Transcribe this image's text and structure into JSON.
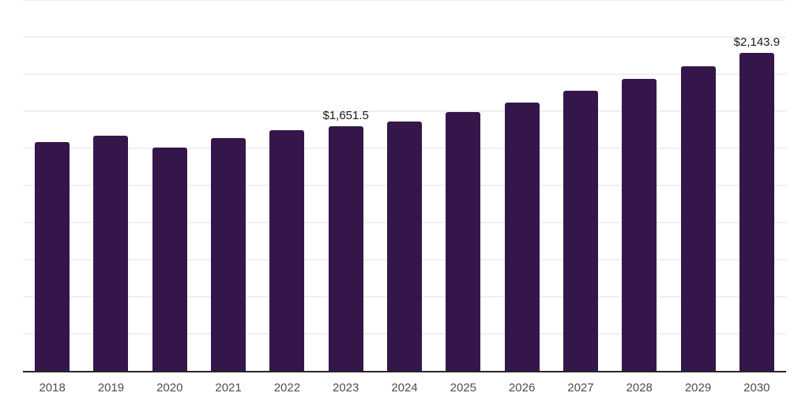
{
  "chart_data": {
    "type": "bar",
    "title": "",
    "xlabel": "",
    "ylabel": "",
    "categories": [
      "2018",
      "2019",
      "2020",
      "2021",
      "2022",
      "2023",
      "2024",
      "2025",
      "2026",
      "2027",
      "2028",
      "2029",
      "2030"
    ],
    "values": [
      1540,
      1585,
      1505,
      1570,
      1620,
      1651.5,
      1680,
      1745,
      1810,
      1890,
      1970,
      2055,
      2143.9
    ],
    "data_labels": [
      {
        "category": "2023",
        "label": "$1,651.5"
      },
      {
        "category": "2030",
        "label": "$2,143.9"
      }
    ],
    "ylim": [
      0,
      2500
    ],
    "gridline_step": 250,
    "grid": true,
    "legend": false,
    "y_axis_ticks_visible": false,
    "colors": {
      "bar": "#34164B",
      "background": "#ffffff",
      "gridline": "#f0f0f0",
      "axis_line": "#262626",
      "tick_label": "#4d4d4d",
      "data_label": "#1a1a1a"
    }
  }
}
